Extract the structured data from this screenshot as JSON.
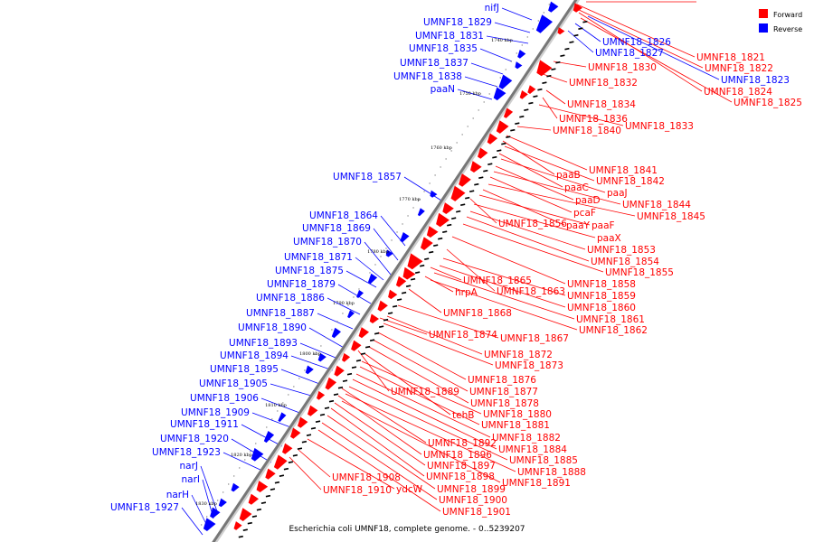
{
  "colors": {
    "forward": "#ff0000",
    "reverse": "#0000ff",
    "backbone": "#777777"
  },
  "legend": {
    "forward": "Forward",
    "reverse": "Reverse"
  },
  "caption": "Escherichia coli UMNF18, complete genome. - 0..5239207",
  "chart_data": {
    "type": "genome-map",
    "ticks": [
      "1740 kbp",
      "1750 kbp",
      "1760 kbp",
      "1770 kbp",
      "1780 kbp",
      "1790 kbp",
      "1800 kbp",
      "1810 kbp",
      "1820 kbp",
      "1830 kbp"
    ],
    "reverse_labels": [
      "nifJ",
      "UMNF18_1829",
      "UMNF18_1831",
      "UMNF18_1835",
      "UMNF18_1837",
      "UMNF18_1838",
      "paaN",
      "UMNF18_1857",
      "UMNF18_1864",
      "UMNF18_1869",
      "UMNF18_1870",
      "UMNF18_1871",
      "UMNF18_1875",
      "UMNF18_1879",
      "UMNF18_1886",
      "UMNF18_1887",
      "UMNF18_1890",
      "UMNF18_1893",
      "UMNF18_1894",
      "UMNF18_1895",
      "UMNF18_1905",
      "UMNF18_1906",
      "UMNF18_1909",
      "UMNF18_1911",
      "UMNF18_1920",
      "UMNF18_1923",
      "narJ",
      "narI",
      "narH",
      "UMNF18_1927"
    ],
    "reverse_right_labels": [
      "UMNF18_1826",
      "UMNF18_1827",
      "UMNF18_1823"
    ],
    "forward_labels": [
      "UMNF18_1821",
      "UMNF18_1822",
      "UMNF18_1824",
      "UMNF18_1825",
      "UMNF18_1830",
      "UMNF18_1832",
      "UMNF18_1834",
      "UMNF18_1836",
      "UMNF18_1833",
      "UMNF18_1840",
      "UMNF18_1841",
      "paaB",
      "UMNF18_1842",
      "paaC",
      "paaJ",
      "paaD",
      "UMNF18_1844",
      "pcaF",
      "UMNF18_1845",
      "UMNF18_1856",
      "paaY",
      "paaF",
      "paaX",
      "UMNF18_1853",
      "UMNF18_1854",
      "UMNF18_1855",
      "UMNF18_1865",
      "UMNF18_1858",
      "hrpA",
      "UMNF18_1863",
      "UMNF18_1859",
      "UMNF18_1860",
      "UMNF18_1868",
      "UMNF18_1861",
      "UMNF18_1862",
      "UMNF18_1874",
      "UMNF18_1867",
      "UMNF18_1872",
      "UMNF18_1873",
      "UMNF18_1876",
      "UMNF18_1889",
      "UMNF18_1877",
      "UMNF18_1878",
      "tehB",
      "UMNF18_1880",
      "UMNF18_1881",
      "UMNF18_1882",
      "UMNF18_1892",
      "UMNF18_1884",
      "UMNF18_1896",
      "UMNF18_1885",
      "UMNF18_1897",
      "UMNF18_1888",
      "UMNF18_1898",
      "UMNF18_1891",
      "UMNF18_1908",
      "UMNF18_1899",
      "UMNF18_1910",
      "ydcW",
      "UMNF18_1900",
      "UMNF18_1901"
    ]
  }
}
